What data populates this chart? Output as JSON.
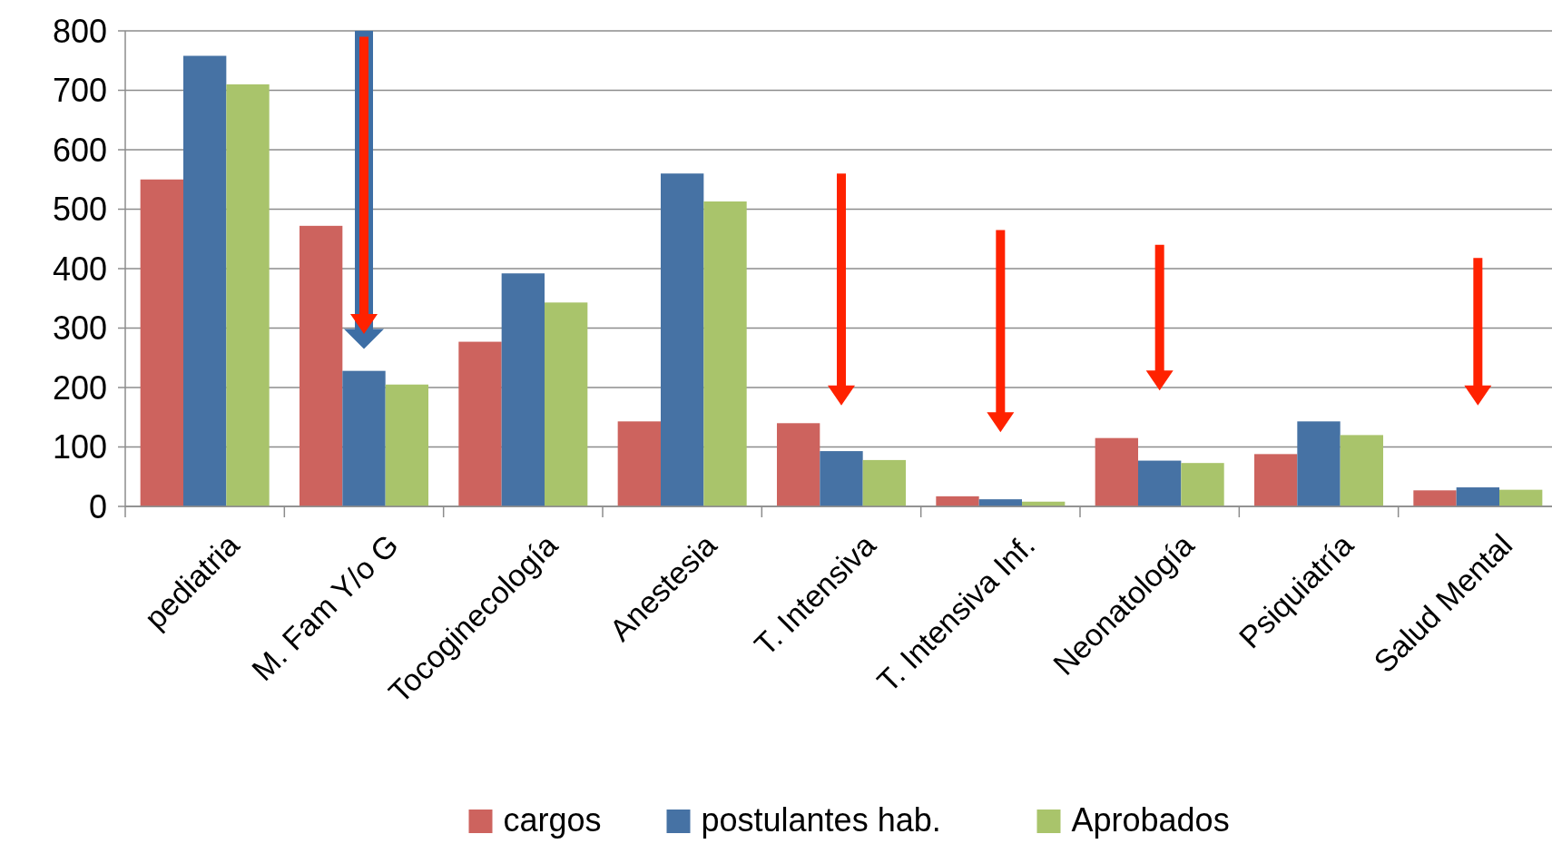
{
  "chart_data": {
    "type": "bar",
    "categories": [
      "pediatria",
      "M. Fam Y/o G",
      "Tocoginecología",
      "Anestesia",
      "T. Intensiva",
      "T. Intensiva Inf.",
      "Neonatología",
      "Psiquiatría",
      "Salud Mental"
    ],
    "series": [
      {
        "name": "cargos",
        "color": "#cd635e",
        "values": [
          550,
          472,
          277,
          143,
          140,
          17,
          115,
          88,
          27
        ]
      },
      {
        "name": "postulantes hab.",
        "color": "#4672a4",
        "values": [
          758,
          228,
          392,
          560,
          93,
          12,
          77,
          143,
          32
        ]
      },
      {
        "name": "Aprobados",
        "color": "#a9c46b",
        "values": [
          710,
          205,
          343,
          513,
          78,
          8,
          73,
          120,
          28
        ]
      }
    ],
    "ylim": [
      0,
      800
    ],
    "yticks": [
      0,
      100,
      200,
      300,
      400,
      500,
      600,
      700,
      800
    ],
    "grid": "y",
    "legend": "bottom"
  }
}
